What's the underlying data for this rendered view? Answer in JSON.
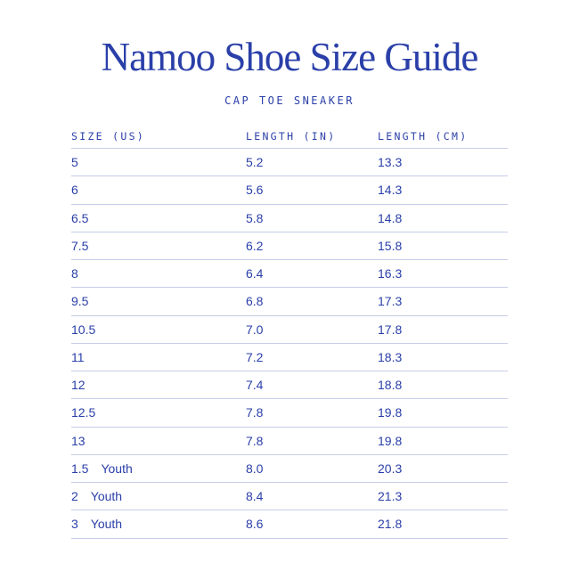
{
  "title": "Namoo Shoe Size Guide",
  "subtitle": "CAP TOE SNEAKER",
  "table": {
    "headers": [
      "SIZE (US)",
      "LENGTH (IN)",
      "LENGTH (CM)"
    ],
    "rows": [
      {
        "size": "5",
        "note": "",
        "in": "5.2",
        "cm": "13.3"
      },
      {
        "size": "6",
        "note": "",
        "in": "5.6",
        "cm": "14.3"
      },
      {
        "size": "6.5",
        "note": "",
        "in": "5.8",
        "cm": "14.8"
      },
      {
        "size": "7.5",
        "note": "",
        "in": "6.2",
        "cm": "15.8"
      },
      {
        "size": "8",
        "note": "",
        "in": "6.4",
        "cm": "16.3"
      },
      {
        "size": "9.5",
        "note": "",
        "in": "6.8",
        "cm": "17.3"
      },
      {
        "size": "10.5",
        "note": "",
        "in": "7.0",
        "cm": "17.8"
      },
      {
        "size": "11",
        "note": "",
        "in": "7.2",
        "cm": "18.3"
      },
      {
        "size": "12",
        "note": "",
        "in": "7.4",
        "cm": "18.8"
      },
      {
        "size": "12.5",
        "note": "",
        "in": "7.8",
        "cm": "19.8"
      },
      {
        "size": "13",
        "note": "",
        "in": "7.8",
        "cm": "19.8"
      },
      {
        "size": "1.5",
        "note": "Youth",
        "in": "8.0",
        "cm": "20.3"
      },
      {
        "size": "2",
        "note": "Youth",
        "in": "8.4",
        "cm": "21.3"
      },
      {
        "size": "3",
        "note": "Youth",
        "in": "8.6",
        "cm": "21.8"
      }
    ]
  },
  "colors": {
    "text": "#2a3fa8",
    "rule": "#c5cde8",
    "background": "#ffffff"
  }
}
